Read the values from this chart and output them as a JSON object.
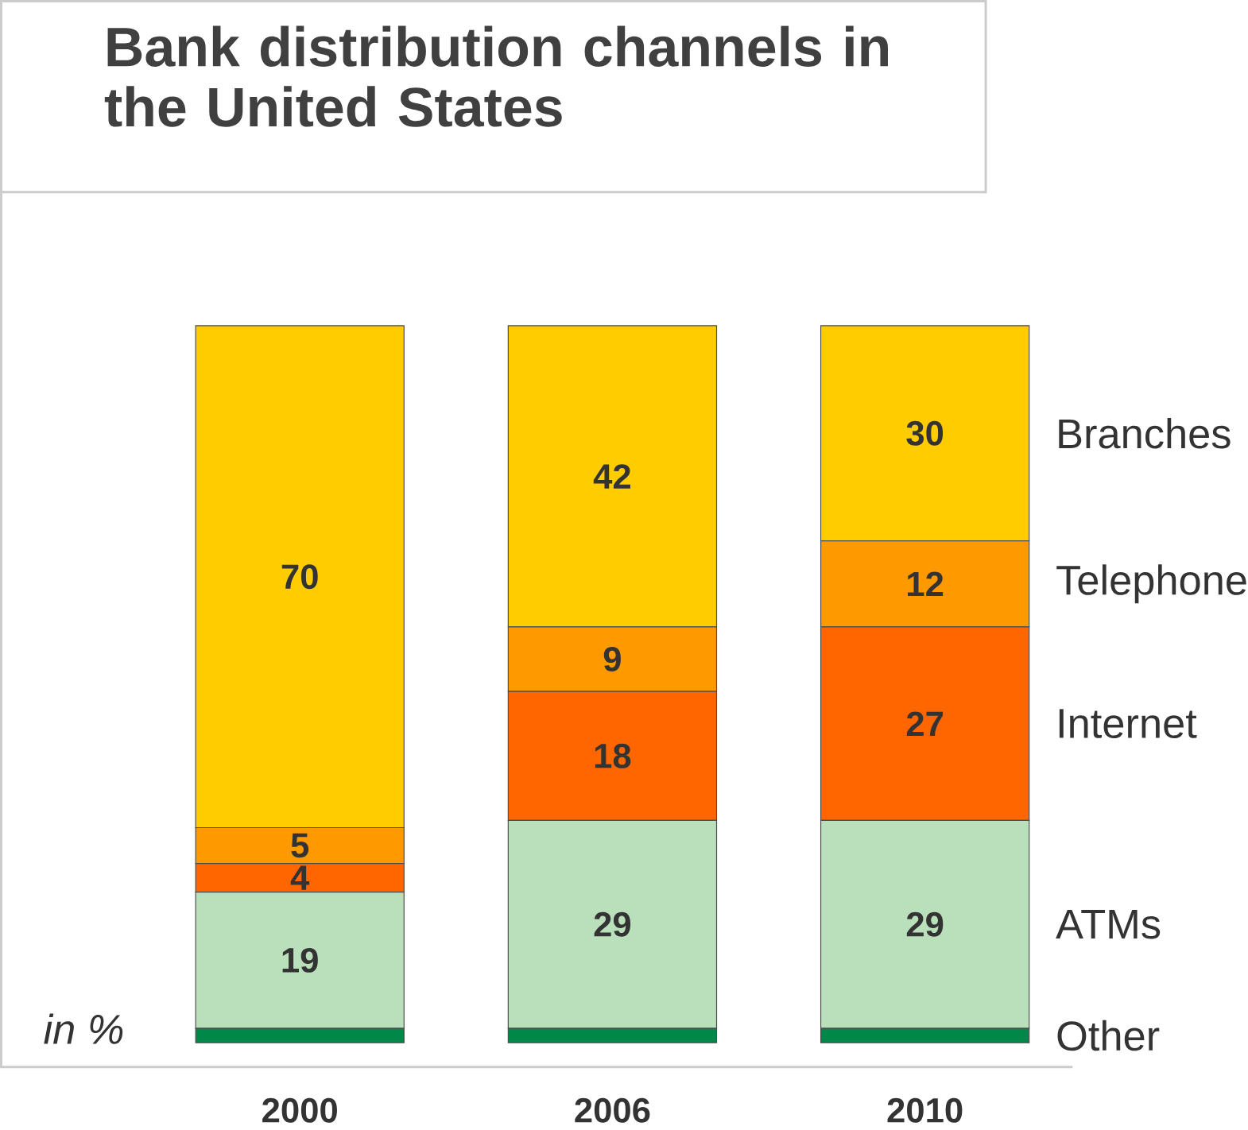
{
  "chart_data": {
    "type": "bar",
    "stacked": true,
    "title": "Bank distribution channels in the United States",
    "annotations": [
      "in %"
    ],
    "categories": [
      "2000",
      "2006",
      "2010"
    ],
    "series": [
      {
        "name": "Other",
        "color": "#00874a",
        "values": [
          2,
          2,
          2
        ]
      },
      {
        "name": "ATMs",
        "color": "#b9dfbb",
        "values": [
          19,
          29,
          29
        ],
        "value_labels": [
          "19",
          "29",
          "29"
        ]
      },
      {
        "name": "Internet",
        "color": "#ff6600",
        "values": [
          4,
          18,
          27
        ],
        "value_labels": [
          "4",
          "18",
          "27"
        ]
      },
      {
        "name": "Telephone",
        "color": "#ff9900",
        "values": [
          5,
          9,
          12
        ],
        "value_labels": [
          "5",
          "9",
          "12"
        ]
      },
      {
        "name": "Branches",
        "color": "#ffcc00",
        "values": [
          70,
          42,
          30
        ],
        "value_labels": [
          "70",
          "42",
          "30"
        ]
      }
    ]
  }
}
